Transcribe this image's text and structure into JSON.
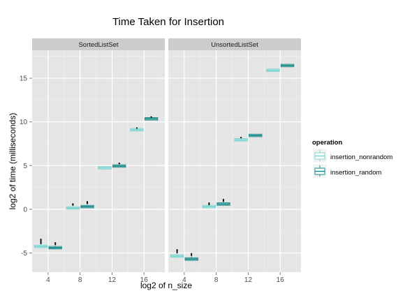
{
  "chart_data": {
    "type": "box",
    "title": "Time Taken for Insertion",
    "xlabel": "log2 of n_size",
    "ylabel": "log2 of time (milliseconds)",
    "x_ticks": [
      4,
      8,
      12,
      16
    ],
    "y_ticks": [
      -5,
      0,
      5,
      10,
      15
    ],
    "xlim": [
      2,
      18.6
    ],
    "ylim": [
      -7.2,
      18.2
    ],
    "grid": true,
    "legend": {
      "title": "operation",
      "position": "right",
      "entries": [
        "insertion_nonrandom",
        "insertion_random"
      ]
    },
    "colors": {
      "insertion_nonrandom": "#7dd3cf",
      "insertion_random": "#1e8c8a",
      "panel_bg": "#e5e5e5",
      "strip_bg": "#cccccc"
    },
    "panels": [
      {
        "name": "SortedListSet",
        "series": [
          {
            "name": "insertion_nonrandom",
            "boxes": [
              {
                "x": 4,
                "median": -4.25,
                "outliers": [
                  -3.9,
                  -3.75,
                  -3.6,
                  -3.45
                ]
              },
              {
                "x": 8,
                "median": 0.15,
                "outliers": [
                  0.5,
                  0.6
                ]
              },
              {
                "x": 12,
                "median": 4.75,
                "outliers": []
              },
              {
                "x": 16,
                "median": 9.1,
                "outliers": [
                  9.3
                ]
              }
            ]
          },
          {
            "name": "insertion_random",
            "boxes": [
              {
                "x": 4,
                "median": -4.4,
                "outliers": [
                  -4.0,
                  -3.85
                ]
              },
              {
                "x": 8,
                "median": 0.3,
                "outliers": [
                  0.7,
                  0.85
                ]
              },
              {
                "x": 12,
                "median": 4.95,
                "outliers": [
                  5.25
                ]
              },
              {
                "x": 16,
                "median": 10.35,
                "outliers": [
                  10.55
                ]
              }
            ]
          }
        ]
      },
      {
        "name": "UnsortedListSet",
        "series": [
          {
            "name": "insertion_nonrandom",
            "boxes": [
              {
                "x": 4,
                "median": -5.35,
                "outliers": [
                  -4.95,
                  -4.8,
                  -4.65
                ]
              },
              {
                "x": 8,
                "median": 0.3,
                "outliers": [
                  0.55,
                  0.7
                ]
              },
              {
                "x": 12,
                "median": 7.95,
                "outliers": [
                  8.2
                ]
              },
              {
                "x": 16,
                "median": 15.9,
                "outliers": []
              }
            ]
          },
          {
            "name": "insertion_random",
            "boxes": [
              {
                "x": 4,
                "median": -5.7,
                "outliers": [
                  -5.25,
                  -5.1
                ]
              },
              {
                "x": 8,
                "median": 0.6,
                "outliers": [
                  0.95,
                  1.1
                ]
              },
              {
                "x": 12,
                "median": 8.45,
                "outliers": []
              },
              {
                "x": 16,
                "median": 16.45,
                "outliers": []
              }
            ]
          }
        ]
      }
    ]
  }
}
